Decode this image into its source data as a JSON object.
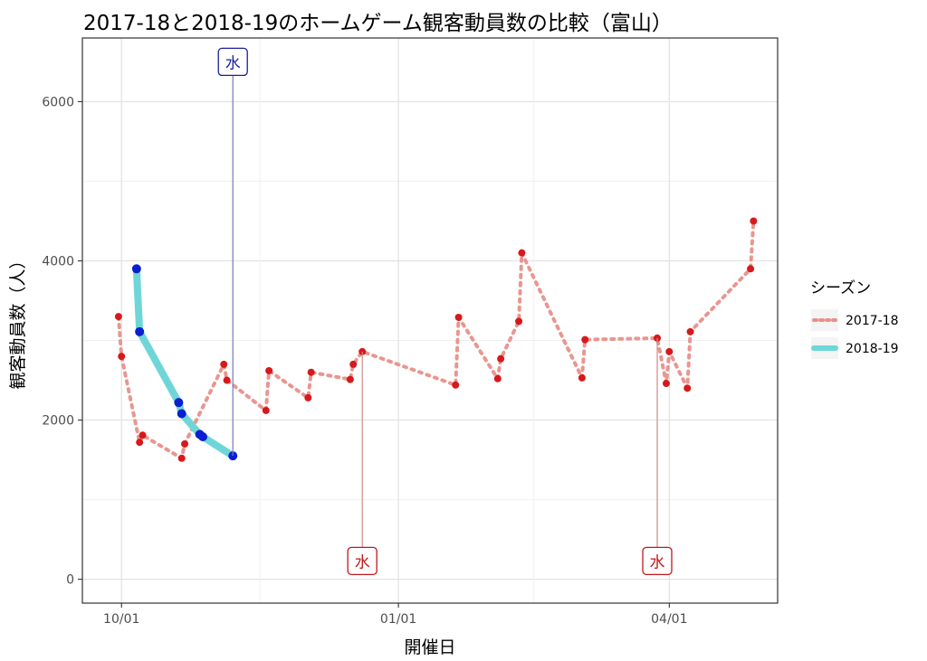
{
  "chart_data": {
    "type": "line",
    "title": "2017-18と2018-19のホームゲーム観客動員数の比較（富山）",
    "xlabel": "開催日",
    "ylabel": "観客動員数（人）",
    "x_ticks": [
      "10/01",
      "01/01",
      "04/01"
    ],
    "y_ticks": [
      "0",
      "2000",
      "4000",
      "6000"
    ],
    "ylim": [
      -300,
      6800
    ],
    "xlim": [
      "09/18",
      "05/07"
    ],
    "grid": true,
    "legend": {
      "title": "シーズン",
      "position": "right"
    },
    "series": [
      {
        "name": "2017-18",
        "color": "#e8908a",
        "point_color": "#d7191c",
        "line_style": "dotted",
        "points": [
          {
            "x": "09/30",
            "y": 3300
          },
          {
            "x": "10/01",
            "y": 2800
          },
          {
            "x": "10/07",
            "y": 1720
          },
          {
            "x": "10/08",
            "y": 1810
          },
          {
            "x": "10/21",
            "y": 1520
          },
          {
            "x": "10/22",
            "y": 1700
          },
          {
            "x": "11/04",
            "y": 2700
          },
          {
            "x": "11/05",
            "y": 2500
          },
          {
            "x": "11/18",
            "y": 2120
          },
          {
            "x": "11/19",
            "y": 2620
          },
          {
            "x": "12/02",
            "y": 2280
          },
          {
            "x": "12/03",
            "y": 2600
          },
          {
            "x": "12/16",
            "y": 2510
          },
          {
            "x": "12/17",
            "y": 2700
          },
          {
            "x": "12/20",
            "y": 2860
          },
          {
            "x": "01/20",
            "y": 2440
          },
          {
            "x": "01/21",
            "y": 3290
          },
          {
            "x": "02/03",
            "y": 2520
          },
          {
            "x": "02/04",
            "y": 2770
          },
          {
            "x": "02/10",
            "y": 3240
          },
          {
            "x": "02/11",
            "y": 4100
          },
          {
            "x": "03/03",
            "y": 2530
          },
          {
            "x": "03/04",
            "y": 3010
          },
          {
            "x": "03/28",
            "y": 3030
          },
          {
            "x": "03/31",
            "y": 2460
          },
          {
            "x": "04/01",
            "y": 2860
          },
          {
            "x": "04/07",
            "y": 2400
          },
          {
            "x": "04/08",
            "y": 3110
          },
          {
            "x": "04/28",
            "y": 3900
          },
          {
            "x": "04/29",
            "y": 4500
          }
        ]
      },
      {
        "name": "2018-19",
        "color": "#6fd6d8",
        "point_color": "#0a1fd0",
        "line_style": "solid",
        "points": [
          {
            "x": "10/06",
            "y": 3900
          },
          {
            "x": "10/07",
            "y": 3110
          },
          {
            "x": "10/20",
            "y": 2220
          },
          {
            "x": "10/21",
            "y": 2080
          },
          {
            "x": "10/27",
            "y": 1820
          },
          {
            "x": "10/28",
            "y": 1790
          },
          {
            "x": "11/07",
            "y": 1550
          }
        ]
      }
    ],
    "annotations": [
      {
        "label": "水",
        "x": "11/07",
        "anchor_y": 1550,
        "label_y": 6500,
        "series": "2018-19",
        "color": "#1a1f99",
        "line_color": "#7a7ab8"
      },
      {
        "label": "水",
        "x": "12/20",
        "anchor_y": 2860,
        "label_y": 230,
        "series": "2017-18",
        "color": "#c0181b",
        "line_color": "#d08a8a"
      },
      {
        "label": "水",
        "x": "03/28",
        "anchor_y": 3030,
        "label_y": 230,
        "series": "2017-18",
        "color": "#c0181b",
        "line_color": "#d08a8a"
      }
    ]
  }
}
